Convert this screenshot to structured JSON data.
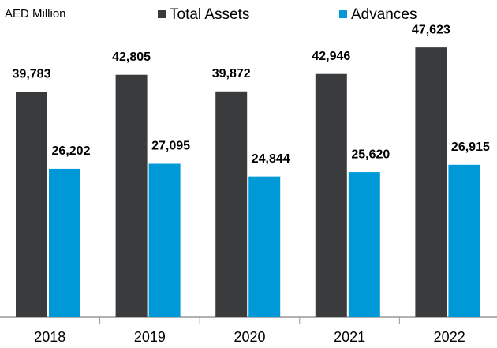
{
  "chart_data": {
    "type": "bar",
    "ylabel": "AED Million",
    "categories": [
      "2018",
      "2019",
      "2020",
      "2021",
      "2022"
    ],
    "series": [
      {
        "name": "Total Assets",
        "color": "#3a3b3d",
        "values": [
          39783,
          42805,
          39872,
          42946,
          47623
        ],
        "value_labels": [
          "39,783",
          "42,805",
          "39,872",
          "42,946",
          "47,623"
        ]
      },
      {
        "name": "Advances",
        "color": "#0099d8",
        "values": [
          26202,
          27095,
          24844,
          25620,
          26915
        ],
        "value_labels": [
          "26,202",
          "27,095",
          "24,844",
          "25,620",
          "26,915"
        ]
      }
    ],
    "ylim": [
      0,
      56000
    ],
    "legend": "top"
  }
}
